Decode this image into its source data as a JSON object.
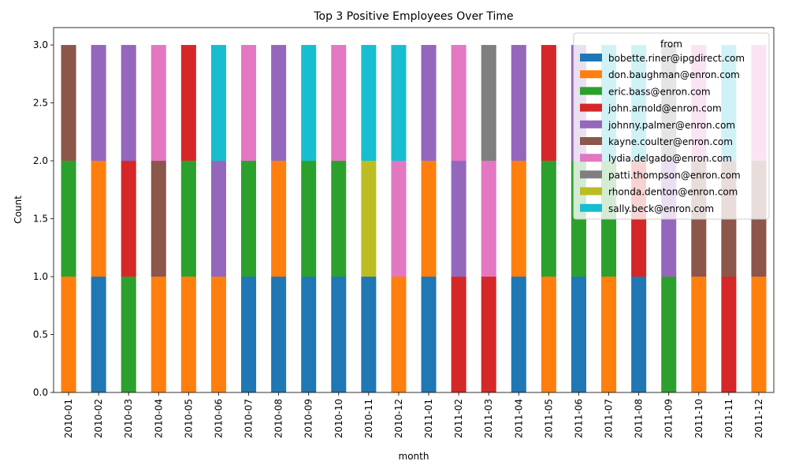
{
  "chart_data": {
    "type": "bar",
    "stacked": true,
    "title": "Top 3 Positive Employees Over Time",
    "xlabel": "month",
    "ylabel": "Count",
    "ylim": [
      0,
      3.15
    ],
    "yticks": [
      "0.0",
      "0.5",
      "1.0",
      "1.5",
      "2.0",
      "2.5",
      "3.0"
    ],
    "grid": false,
    "legend": {
      "title": "from",
      "placement": "top-right"
    },
    "categories": [
      "2010-01",
      "2010-02",
      "2010-03",
      "2010-04",
      "2010-05",
      "2010-06",
      "2010-07",
      "2010-08",
      "2010-09",
      "2010-10",
      "2010-11",
      "2010-12",
      "2011-01",
      "2011-02",
      "2011-03",
      "2011-04",
      "2011-05",
      "2011-06",
      "2011-07",
      "2011-08",
      "2011-09",
      "2011-10",
      "2011-11",
      "2011-12"
    ],
    "series": [
      {
        "name": "bobette.riner@ipgdirect.com",
        "color": "#1f77b4",
        "values": [
          0,
          1,
          0,
          0,
          0,
          0,
          1,
          1,
          1,
          1,
          1,
          0,
          1,
          0,
          0,
          1,
          0,
          1,
          0,
          1,
          0,
          0,
          0,
          0
        ]
      },
      {
        "name": "don.baughman@enron.com",
        "color": "#ff7f0e",
        "values": [
          1,
          1,
          0,
          1,
          1,
          1,
          0,
          1,
          0,
          0,
          0,
          1,
          1,
          0,
          0,
          1,
          1,
          0,
          1,
          0,
          0,
          1,
          0,
          1
        ]
      },
      {
        "name": "eric.bass@enron.com",
        "color": "#2ca02c",
        "values": [
          1,
          0,
          1,
          0,
          1,
          0,
          1,
          0,
          1,
          1,
          0,
          0,
          0,
          0,
          0,
          0,
          1,
          1,
          1,
          0,
          1,
          0,
          0,
          0
        ]
      },
      {
        "name": "john.arnold@enron.com",
        "color": "#d62728",
        "values": [
          0,
          0,
          1,
          0,
          1,
          0,
          0,
          0,
          0,
          0,
          0,
          0,
          0,
          1,
          1,
          0,
          1,
          0,
          0,
          1,
          0,
          0,
          1,
          0
        ]
      },
      {
        "name": "johnny.palmer@enron.com",
        "color": "#9467bd",
        "values": [
          0,
          1,
          1,
          0,
          0,
          1,
          0,
          1,
          0,
          0,
          0,
          0,
          1,
          1,
          0,
          1,
          0,
          1,
          0,
          0,
          1,
          0,
          0,
          0
        ]
      },
      {
        "name": "kayne.coulter@enron.com",
        "color": "#8c564b",
        "values": [
          1,
          0,
          0,
          1,
          0,
          0,
          0,
          0,
          0,
          0,
          0,
          0,
          0,
          0,
          0,
          0,
          0,
          0,
          0,
          0,
          0,
          1,
          1,
          1
        ]
      },
      {
        "name": "lydia.delgado@enron.com",
        "color": "#e377c2",
        "values": [
          0,
          0,
          0,
          1,
          0,
          0,
          1,
          0,
          0,
          1,
          0,
          1,
          0,
          1,
          1,
          0,
          0,
          0,
          0,
          0,
          0,
          1,
          0,
          1
        ]
      },
      {
        "name": "patti.thompson@enron.com",
        "color": "#7f7f7f",
        "values": [
          0,
          0,
          0,
          0,
          0,
          0,
          0,
          0,
          0,
          0,
          0,
          0,
          0,
          0,
          1,
          0,
          0,
          0,
          0,
          0,
          1,
          0,
          0,
          0
        ]
      },
      {
        "name": "rhonda.denton@enron.com",
        "color": "#bcbd22",
        "values": [
          0,
          0,
          0,
          0,
          0,
          0,
          0,
          0,
          0,
          0,
          1,
          0,
          0,
          0,
          0,
          0,
          0,
          0,
          0,
          0,
          0,
          0,
          0,
          0
        ]
      },
      {
        "name": "sally.beck@enron.com",
        "color": "#17becf",
        "values": [
          0,
          0,
          0,
          0,
          0,
          1,
          0,
          0,
          1,
          0,
          1,
          1,
          0,
          0,
          0,
          0,
          0,
          0,
          1,
          1,
          0,
          0,
          1,
          0
        ]
      }
    ]
  }
}
